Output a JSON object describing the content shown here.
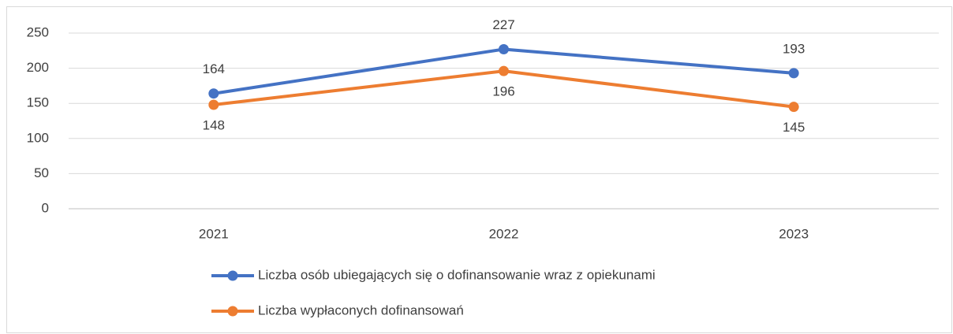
{
  "chart_data": {
    "type": "line",
    "categories": [
      "2021",
      "2022",
      "2023"
    ],
    "series": [
      {
        "name": "Liczba osób ubiegających się o dofinansowanie wraz z opiekunami",
        "color": "#4472c4",
        "values": [
          164,
          227,
          193
        ]
      },
      {
        "name": "Liczba wypłaconych dofinansowań",
        "color": "#ed7d31",
        "values": [
          148,
          196,
          145
        ]
      }
    ],
    "ylim": [
      0,
      250
    ],
    "yticks": [
      0,
      50,
      100,
      150,
      200,
      250
    ],
    "grid": true,
    "legend": "bottom"
  }
}
